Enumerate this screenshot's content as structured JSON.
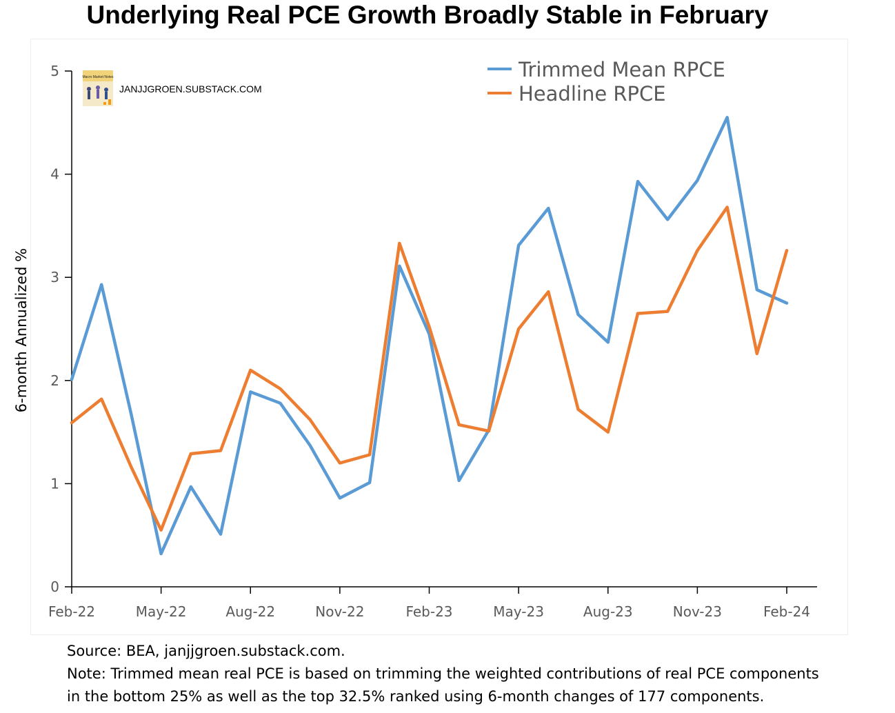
{
  "title": "Underlying Real PCE Growth Broadly Stable in February",
  "watermark": {
    "site": "JANJJGROEN.SUBSTACK.COM",
    "logo_text": "Macro Market Notes"
  },
  "footer": {
    "source": "Source: BEA, janjjgroen.substack.com.",
    "note_line1": "Note: Trimmed mean real PCE is based on trimming the weighted contributions of real PCE components",
    "note_line2": "in the bottom 25% as well as the top 32.5% ranked using 6-month changes of 177 components."
  },
  "chart_data": {
    "type": "line",
    "title": "Underlying Real PCE Growth Broadly Stable in February",
    "ylabel": "6-month Annualized %",
    "xlabel": "",
    "ylim": [
      0,
      5
    ],
    "yticks": [
      0,
      1,
      2,
      3,
      4,
      5
    ],
    "x_tick_labels": [
      "Feb-22",
      "May-22",
      "Aug-22",
      "Nov-22",
      "Feb-23",
      "May-23",
      "Aug-23",
      "Nov-23",
      "Feb-24"
    ],
    "x": [
      "Feb-22",
      "Mar-22",
      "Apr-22",
      "May-22",
      "Jun-22",
      "Jul-22",
      "Aug-22",
      "Sep-22",
      "Oct-22",
      "Nov-22",
      "Dec-22",
      "Jan-23",
      "Feb-23",
      "Mar-23",
      "Apr-23",
      "May-23",
      "Jun-23",
      "Jul-23",
      "Aug-23",
      "Sep-23",
      "Oct-23",
      "Nov-23",
      "Dec-23",
      "Jan-24",
      "Feb-24"
    ],
    "series": [
      {
        "name": "Trimmed Mean RPCE",
        "color": "#5b9bd5",
        "values": [
          2.01,
          2.93,
          1.67,
          0.32,
          0.97,
          0.51,
          1.89,
          1.78,
          1.37,
          0.86,
          1.01,
          3.11,
          2.45,
          1.03,
          1.52,
          3.31,
          3.67,
          2.64,
          2.37,
          3.93,
          3.56,
          3.94,
          4.55,
          2.88,
          2.75
        ]
      },
      {
        "name": "Headline RPCE",
        "color": "#ed7d31",
        "values": [
          1.59,
          1.82,
          1.16,
          0.55,
          1.29,
          1.32,
          2.1,
          1.92,
          1.62,
          1.2,
          1.28,
          3.33,
          2.52,
          1.57,
          1.51,
          2.5,
          2.86,
          1.72,
          1.5,
          2.65,
          2.67,
          3.26,
          3.68,
          2.26,
          3.26
        ]
      }
    ],
    "legend_position": "top-right",
    "grid": false
  }
}
